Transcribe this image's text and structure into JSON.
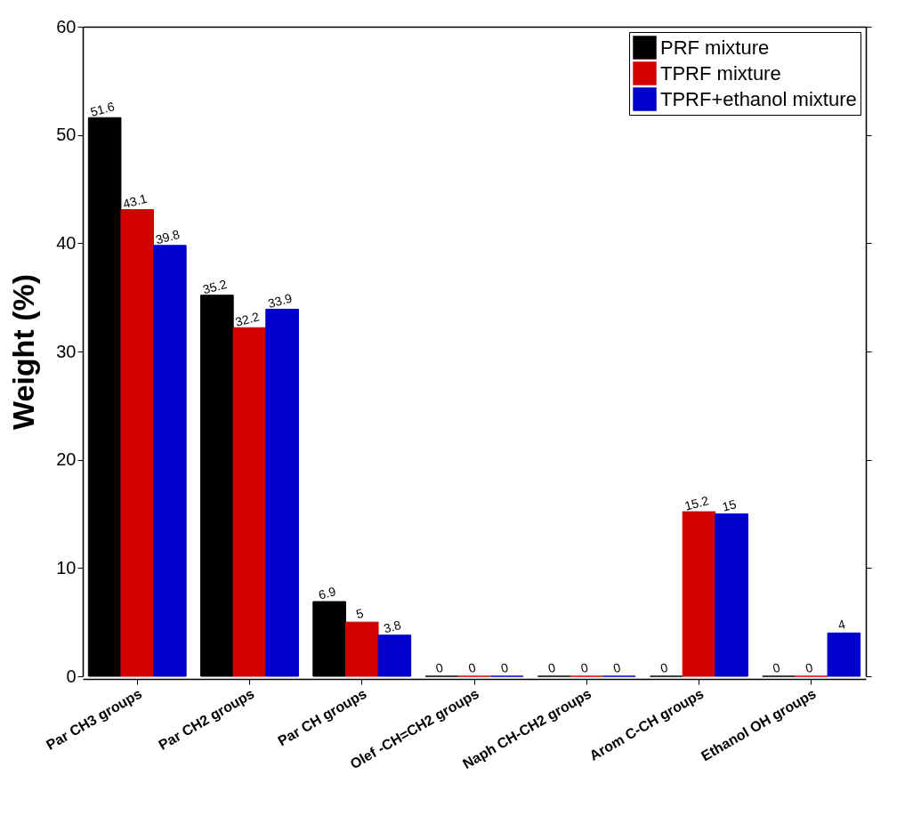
{
  "chart_data": {
    "type": "bar",
    "ylabel": "Weight (%)",
    "categories": [
      "Par CH3 groups",
      "Par CH2 groups",
      "Par CH groups",
      "Olef -CH=CH2 groups",
      "Naph CH-CH2 groups",
      "Arom C-CH groups",
      "Ethanol OH groups"
    ],
    "series": [
      {
        "name": "PRF mixture",
        "color": "#000000",
        "values": [
          51.6,
          35.2,
          6.9,
          0,
          0,
          0,
          0
        ]
      },
      {
        "name": "TPRF mixture",
        "color": "#d40000",
        "values": [
          43.1,
          32.2,
          5,
          0,
          0,
          15.2,
          0
        ]
      },
      {
        "name": "TPRF+ethanol mixture",
        "color": "#0000cc",
        "values": [
          39.8,
          33.9,
          3.8,
          0,
          0,
          15,
          4
        ]
      }
    ],
    "ylim": [
      0,
      60
    ],
    "yticks": [
      0,
      10,
      20,
      30,
      40,
      50,
      60
    ],
    "data_labels": true,
    "legend": "top right",
    "grid": false
  }
}
